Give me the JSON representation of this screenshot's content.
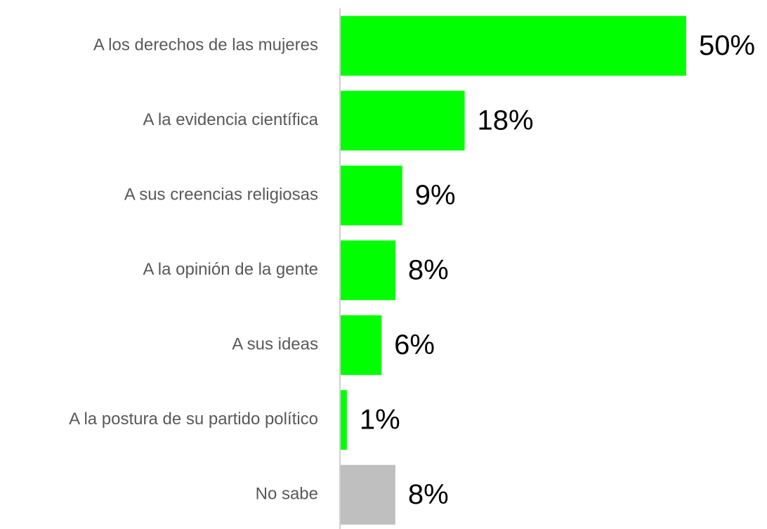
{
  "chart_data": {
    "type": "barh",
    "categories": [
      "A los derechos de las mujeres",
      "A la evidencia científica",
      "A sus creencias religiosas",
      "A la opinión de la gente",
      "A sus ideas",
      "A la postura de su partido político",
      "No sabe"
    ],
    "values": [
      50,
      18,
      9,
      8,
      6,
      1,
      8
    ],
    "value_labels": [
      "50%",
      "18%",
      "9%",
      "8%",
      "6%",
      "1%",
      "8%"
    ],
    "colors": [
      "#00ff00",
      "#00ff00",
      "#00ff00",
      "#00ff00",
      "#00ff00",
      "#00ff00",
      "#bfbfbf"
    ]
  }
}
